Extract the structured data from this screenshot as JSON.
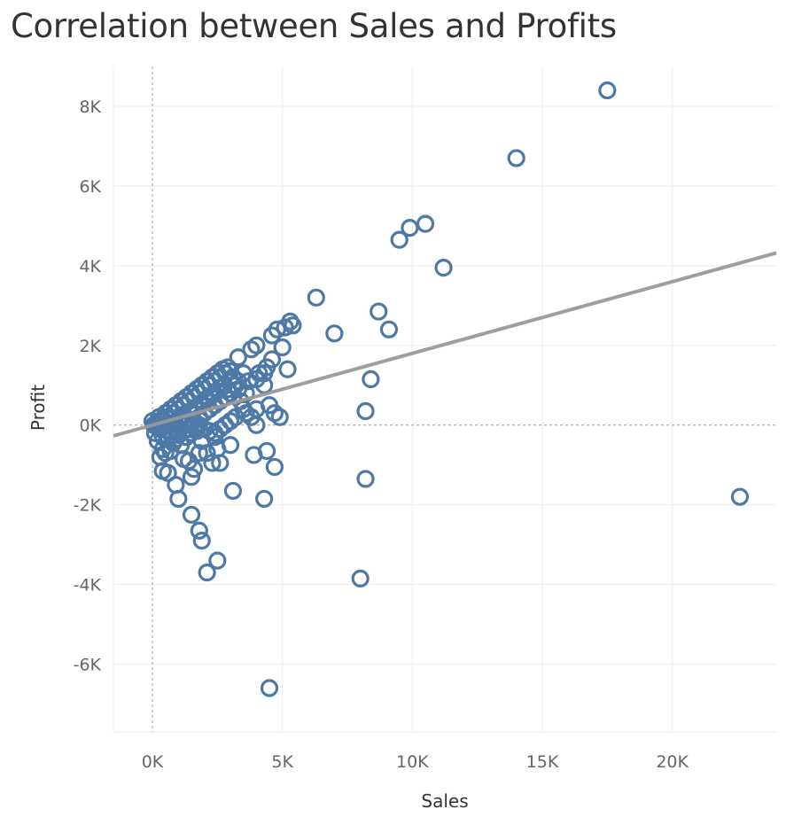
{
  "chart_data": {
    "type": "scatter",
    "title": "Correlation between Sales and Profits",
    "xlabel": "Sales",
    "ylabel": "Profit",
    "xlim": [
      -1500,
      24000
    ],
    "ylim": [
      -7700,
      9000
    ],
    "x_ticks": [
      {
        "value": 0,
        "label": "0K"
      },
      {
        "value": 5000,
        "label": "5K"
      },
      {
        "value": 10000,
        "label": "10K"
      },
      {
        "value": 15000,
        "label": "15K"
      },
      {
        "value": 20000,
        "label": "20K"
      }
    ],
    "y_ticks": [
      {
        "value": 8000,
        "label": "8K"
      },
      {
        "value": 6000,
        "label": "6K"
      },
      {
        "value": 4000,
        "label": "4K"
      },
      {
        "value": 2000,
        "label": "2K"
      },
      {
        "value": 0,
        "label": "0K"
      },
      {
        "value": -2000,
        "label": "-2K"
      },
      {
        "value": -4000,
        "label": "-4K"
      },
      {
        "value": -6000,
        "label": "-6K"
      }
    ],
    "grid": true,
    "trend_line": {
      "intercept": 0,
      "slope": 0.18
    },
    "marker_color": "#4e79a7",
    "trend_color": "#999999",
    "points": [
      [
        17500,
        8400
      ],
      [
        14000,
        6700
      ],
      [
        10500,
        5050
      ],
      [
        9900,
        4950
      ],
      [
        9500,
        4650
      ],
      [
        11200,
        3950
      ],
      [
        6300,
        3200
      ],
      [
        8700,
        2850
      ],
      [
        9100,
        2400
      ],
      [
        7000,
        2300
      ],
      [
        5300,
        2600
      ],
      [
        5400,
        2500
      ],
      [
        5100,
        2450
      ],
      [
        4800,
        2400
      ],
      [
        4600,
        2250
      ],
      [
        5000,
        1950
      ],
      [
        4000,
        2000
      ],
      [
        3800,
        1900
      ],
      [
        3300,
        1700
      ],
      [
        5200,
        1400
      ],
      [
        4600,
        1650
      ],
      [
        4400,
        1450
      ],
      [
        4300,
        1300
      ],
      [
        4100,
        1300
      ],
      [
        4000,
        1150
      ],
      [
        4300,
        1000
      ],
      [
        8400,
        1150
      ],
      [
        8200,
        350
      ],
      [
        4700,
        300
      ],
      [
        4900,
        200
      ],
      [
        4500,
        500
      ],
      [
        4000,
        400
      ],
      [
        3800,
        200
      ],
      [
        3600,
        300
      ],
      [
        4000,
        0
      ],
      [
        22600,
        -1800
      ],
      [
        8200,
        -1350
      ],
      [
        8000,
        -3850
      ],
      [
        4500,
        -6600
      ],
      [
        4300,
        -1850
      ],
      [
        4400,
        -650
      ],
      [
        4700,
        -1050
      ],
      [
        3900,
        -750
      ],
      [
        3100,
        -1650
      ],
      [
        3000,
        -500
      ],
      [
        2500,
        -3400
      ],
      [
        2100,
        -3700
      ],
      [
        1800,
        -2650
      ],
      [
        1900,
        -2900
      ],
      [
        1500,
        -2250
      ],
      [
        1000,
        -1850
      ],
      [
        900,
        -1500
      ],
      [
        600,
        -1200
      ],
      [
        400,
        -1150
      ],
      [
        1500,
        -1300
      ],
      [
        2600,
        -950
      ],
      [
        2300,
        -950
      ],
      [
        2100,
        -700
      ],
      [
        2500,
        -600
      ],
      [
        2400,
        -300
      ],
      [
        1600,
        -1100
      ],
      [
        1400,
        -900
      ],
      [
        1200,
        -850
      ],
      [
        1800,
        -700
      ],
      [
        1900,
        -400
      ],
      [
        300,
        -800
      ],
      [
        500,
        -700
      ],
      [
        400,
        -600
      ],
      [
        700,
        -650
      ],
      [
        800,
        -450
      ],
      [
        600,
        -300
      ],
      [
        900,
        -350
      ],
      [
        1100,
        -500
      ],
      [
        1000,
        -250
      ],
      [
        1300,
        -300
      ],
      [
        1500,
        -200
      ],
      [
        1700,
        -150
      ],
      [
        200,
        -400
      ],
      [
        100,
        -200
      ],
      [
        300,
        -100
      ],
      [
        50,
        0
      ],
      [
        0,
        100
      ],
      [
        150,
        50
      ],
      [
        250,
        200
      ],
      [
        400,
        150
      ],
      [
        500,
        300
      ],
      [
        600,
        200
      ],
      [
        700,
        400
      ],
      [
        800,
        300
      ],
      [
        900,
        500
      ],
      [
        1000,
        400
      ],
      [
        1100,
        600
      ],
      [
        1200,
        500
      ],
      [
        1300,
        700
      ],
      [
        1400,
        600
      ],
      [
        1500,
        800
      ],
      [
        1600,
        700
      ],
      [
        1700,
        900
      ],
      [
        1800,
        800
      ],
      [
        1900,
        1000
      ],
      [
        2000,
        900
      ],
      [
        2100,
        1100
      ],
      [
        2200,
        1000
      ],
      [
        2300,
        1200
      ],
      [
        2400,
        1100
      ],
      [
        2500,
        1300
      ],
      [
        2600,
        1200
      ],
      [
        2700,
        1400
      ],
      [
        2800,
        1300
      ],
      [
        2900,
        1450
      ],
      [
        3000,
        1350
      ],
      [
        3100,
        1200
      ],
      [
        3200,
        1000
      ],
      [
        3300,
        900
      ],
      [
        3000,
        800
      ],
      [
        2800,
        700
      ],
      [
        2600,
        600
      ],
      [
        2400,
        500
      ],
      [
        2200,
        400
      ],
      [
        2000,
        300
      ],
      [
        1800,
        200
      ],
      [
        1600,
        100
      ],
      [
        1400,
        50
      ],
      [
        1200,
        0
      ],
      [
        1000,
        100
      ],
      [
        800,
        50
      ],
      [
        600,
        0
      ],
      [
        400,
        -50
      ],
      [
        200,
        0
      ],
      [
        3400,
        600
      ],
      [
        3500,
        400
      ],
      [
        3200,
        200
      ],
      [
        3000,
        100
      ],
      [
        2800,
        0
      ],
      [
        2600,
        -100
      ],
      [
        2400,
        -200
      ],
      [
        2200,
        -150
      ],
      [
        2000,
        -100
      ],
      [
        1800,
        0
      ],
      [
        1600,
        -50
      ],
      [
        1400,
        -100
      ],
      [
        1200,
        -150
      ],
      [
        1000,
        -200
      ],
      [
        800,
        -250
      ],
      [
        600,
        -150
      ],
      [
        400,
        -300
      ],
      [
        2700,
        950
      ],
      [
        2300,
        750
      ],
      [
        1900,
        550
      ],
      [
        1500,
        350
      ],
      [
        1100,
        250
      ],
      [
        700,
        150
      ],
      [
        300,
        100
      ],
      [
        3600,
        800
      ],
      [
        3700,
        1100
      ],
      [
        3500,
        1300
      ],
      [
        3300,
        1100
      ],
      [
        3100,
        1000
      ],
      [
        2900,
        900
      ],
      [
        2500,
        850
      ],
      [
        2100,
        650
      ],
      [
        1700,
        450
      ]
    ]
  }
}
